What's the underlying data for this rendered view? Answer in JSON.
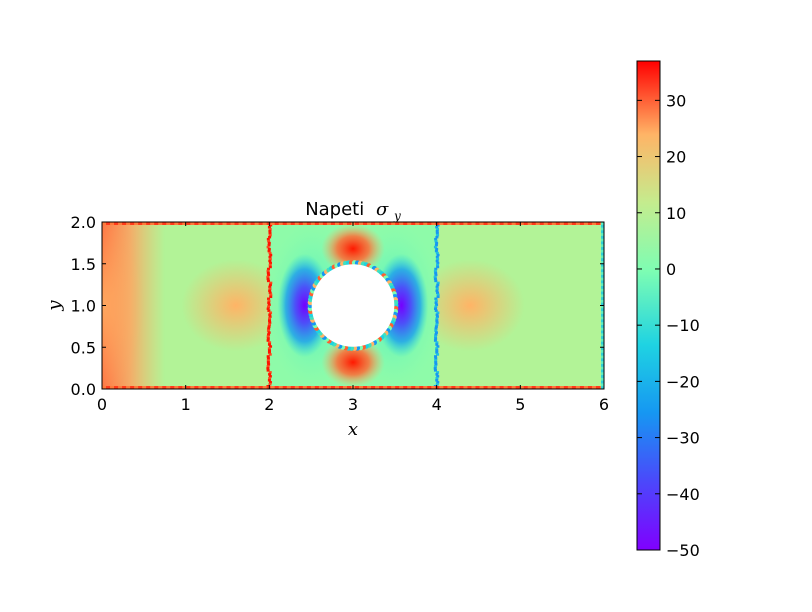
{
  "chart_data": {
    "type": "heatmap",
    "title": {
      "prefix": "Napeti",
      "symbol": "σ",
      "subscript": "y"
    },
    "xlabel": "x",
    "ylabel": "y",
    "xlim": [
      0,
      6
    ],
    "ylim": [
      0,
      2
    ],
    "xticks": [
      "0",
      "1",
      "2",
      "3",
      "4",
      "5",
      "6"
    ],
    "yticks": [
      "0.0",
      "0.5",
      "1.0",
      "1.5",
      "2.0"
    ],
    "colorbar": {
      "colormap": "rainbow",
      "vmin": -50,
      "vmax": 37,
      "ticks": [
        "30",
        "20",
        "10",
        "0",
        "−10",
        "−20",
        "−30",
        "−40",
        "−50"
      ]
    },
    "hole": {
      "center": [
        3,
        1
      ],
      "radius": 0.5
    },
    "field_features": [
      {
        "description": "high stress band along left edge",
        "x": 0.1,
        "y": 1.0,
        "value": 22
      },
      {
        "description": "hot spot",
        "x": 1.6,
        "y": 1.0,
        "value": 18
      },
      {
        "description": "hot spot",
        "x": 4.4,
        "y": 1.0,
        "value": 18
      },
      {
        "description": "peak above hole",
        "x": 3.0,
        "y": 1.65,
        "value": 32
      },
      {
        "description": "peak below hole",
        "x": 3.0,
        "y": 0.35,
        "value": 32
      },
      {
        "description": "minimum left of hole",
        "x": 2.45,
        "y": 1.0,
        "value": -48
      },
      {
        "description": "minimum right of hole",
        "x": 3.55,
        "y": 1.0,
        "value": -48
      },
      {
        "description": "background",
        "value": 4
      },
      {
        "description": "vertical line x=2",
        "x": 2,
        "value": 35
      },
      {
        "description": "vertical line x=4",
        "x": 4,
        "value": -30
      }
    ]
  }
}
